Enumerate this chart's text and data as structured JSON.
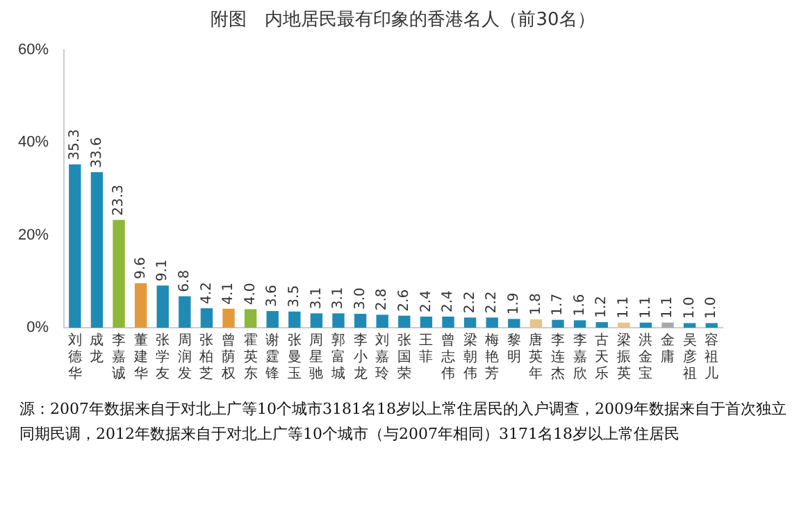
{
  "chart_data": {
    "type": "bar",
    "title": "附图　内地居民最有印象的香港名人（前30名）",
    "categories": [
      "刘德华",
      "成龙",
      "李嘉诚",
      "董建华",
      "张学友",
      "周润发",
      "张柏芝",
      "曾荫权",
      "霍英东",
      "谢霆锋",
      "张曼玉",
      "周星驰",
      "郭富城",
      "李小龙",
      "刘嘉玲",
      "张国荣",
      "王菲",
      "曾志伟",
      "梁朝伟",
      "梅艳芳",
      "黎明",
      "唐英年",
      "李连杰",
      "李嘉欣",
      "古天乐",
      "梁振英",
      "洪金宝",
      "金庸",
      "吴彦祖",
      "容祖儿"
    ],
    "values": [
      35.3,
      33.6,
      23.3,
      9.6,
      9.1,
      6.8,
      4.2,
      4.1,
      4.0,
      3.6,
      3.5,
      3.1,
      3.1,
      3.0,
      2.8,
      2.6,
      2.4,
      2.4,
      2.2,
      2.2,
      1.9,
      1.8,
      1.7,
      1.6,
      1.2,
      1.1,
      1.1,
      1.1,
      1.0,
      1.0
    ],
    "colors": [
      "#1f8bb5",
      "#1f8bb5",
      "#8db83a",
      "#e39a3c",
      "#1f8bb5",
      "#1f8bb5",
      "#1f8bb5",
      "#e39a3c",
      "#8db83a",
      "#1f8bb5",
      "#1f8bb5",
      "#1f8bb5",
      "#1f8bb5",
      "#1f8bb5",
      "#1f8bb5",
      "#1f8bb5",
      "#1f8bb5",
      "#1f8bb5",
      "#1f8bb5",
      "#1f8bb5",
      "#1f8bb5",
      "#e6c48c",
      "#1f8bb5",
      "#1f8bb5",
      "#1f8bb5",
      "#e6c48c",
      "#1f8bb5",
      "#a8a8a8",
      "#1f8bb5",
      "#1f8bb5"
    ],
    "value_labels": [
      "35.3",
      "33.6",
      "23.3",
      "9.6",
      "9.1",
      "6.8",
      "4.2",
      "4.1",
      "4.0",
      "3.6",
      "3.5",
      "3.1",
      "3.1",
      "3.0",
      "2.8",
      "2.6",
      "2.4",
      "2.4",
      "2.2",
      "2.2",
      "1.9",
      "1.8",
      "1.7",
      "1.6",
      "1.2",
      "1.1",
      "1.1",
      "1.1",
      "1.0",
      "1.0"
    ],
    "ylim": [
      0,
      60
    ],
    "yticks": [
      {
        "value": 0,
        "label": "0%"
      },
      {
        "value": 20,
        "label": "20%"
      },
      {
        "value": 40,
        "label": "40%"
      },
      {
        "value": 60,
        "label": "60%"
      }
    ],
    "grid": false,
    "legend": false,
    "annotations": [
      "源：2007年数据来自于对北上广等10个城市3181名18岁以上常住居民的入户调查，2009年数据来自于首次独立同期民调，2012年数据来自于对北上广等10个城市（与2007年相同）3171名18岁以上常住居民"
    ]
  }
}
